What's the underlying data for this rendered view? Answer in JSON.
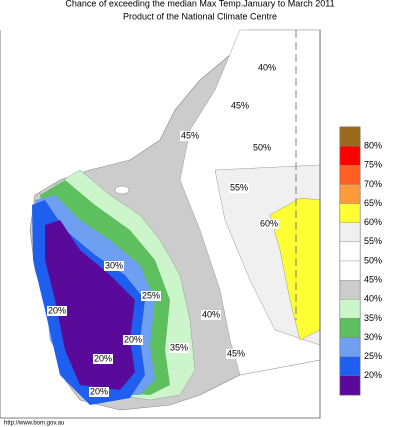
{
  "header": {
    "title": "Chance of exceeding the median Max Temp.January to March 2011",
    "subtitle": "Product of the National Climate Centre"
  },
  "map": {
    "labels": [
      "40%",
      "45%",
      "45%",
      "50%",
      "55%",
      "60%",
      "30%",
      "25%",
      "40%",
      "20%",
      "20%",
      "20%",
      "35%",
      "45%",
      "20%"
    ]
  },
  "legend": {
    "labels": [
      "80%",
      "75%",
      "70%",
      "65%",
      "60%",
      "55%",
      "50%",
      "45%",
      "40%",
      "35%",
      "30%",
      "25%",
      "20%"
    ],
    "colors": [
      "#9c6a1c",
      "#ff0000",
      "#ff6020",
      "#ff9a3c",
      "#ffff33",
      "#f0f0f0",
      "#ffffff",
      "#ffffff",
      "#cccccc",
      "#ccf5cc",
      "#5dbf5d",
      "#6f9ff0",
      "#1e5ff0",
      "#5a0a9a"
    ]
  },
  "footer": {
    "url": "http://www.bom.gov.au"
  }
}
